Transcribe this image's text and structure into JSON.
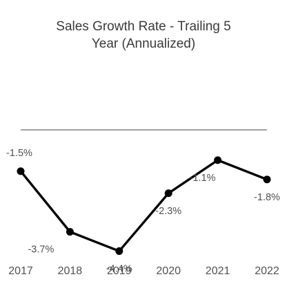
{
  "chart_data": {
    "type": "line",
    "title_lines": [
      "Sales Growth Rate - Trailing 5",
      "Year (Annualized)"
    ],
    "title": "Sales Growth Rate - Trailing 5 Year (Annualized)",
    "xlabel": "",
    "ylabel": "",
    "categories": [
      "2017",
      "2018",
      "2019",
      "2020",
      "2021",
      "2022"
    ],
    "series": [
      {
        "values": [
          -1.5,
          -3.7,
          -4.4,
          -2.3,
          -1.1,
          -1.8
        ],
        "data_labels": [
          "-1.5%",
          "-3.7%",
          "-4.4%",
          "-2.3%",
          "-1.1%",
          "-1.8%"
        ]
      }
    ],
    "ylim": [
      -5.0,
      0.0
    ],
    "reference_line": 0,
    "grid": false,
    "legend": "none",
    "colors": {
      "line": "#000000",
      "marker": "#000000",
      "reference_line": "#808080",
      "text": "#505050"
    }
  }
}
